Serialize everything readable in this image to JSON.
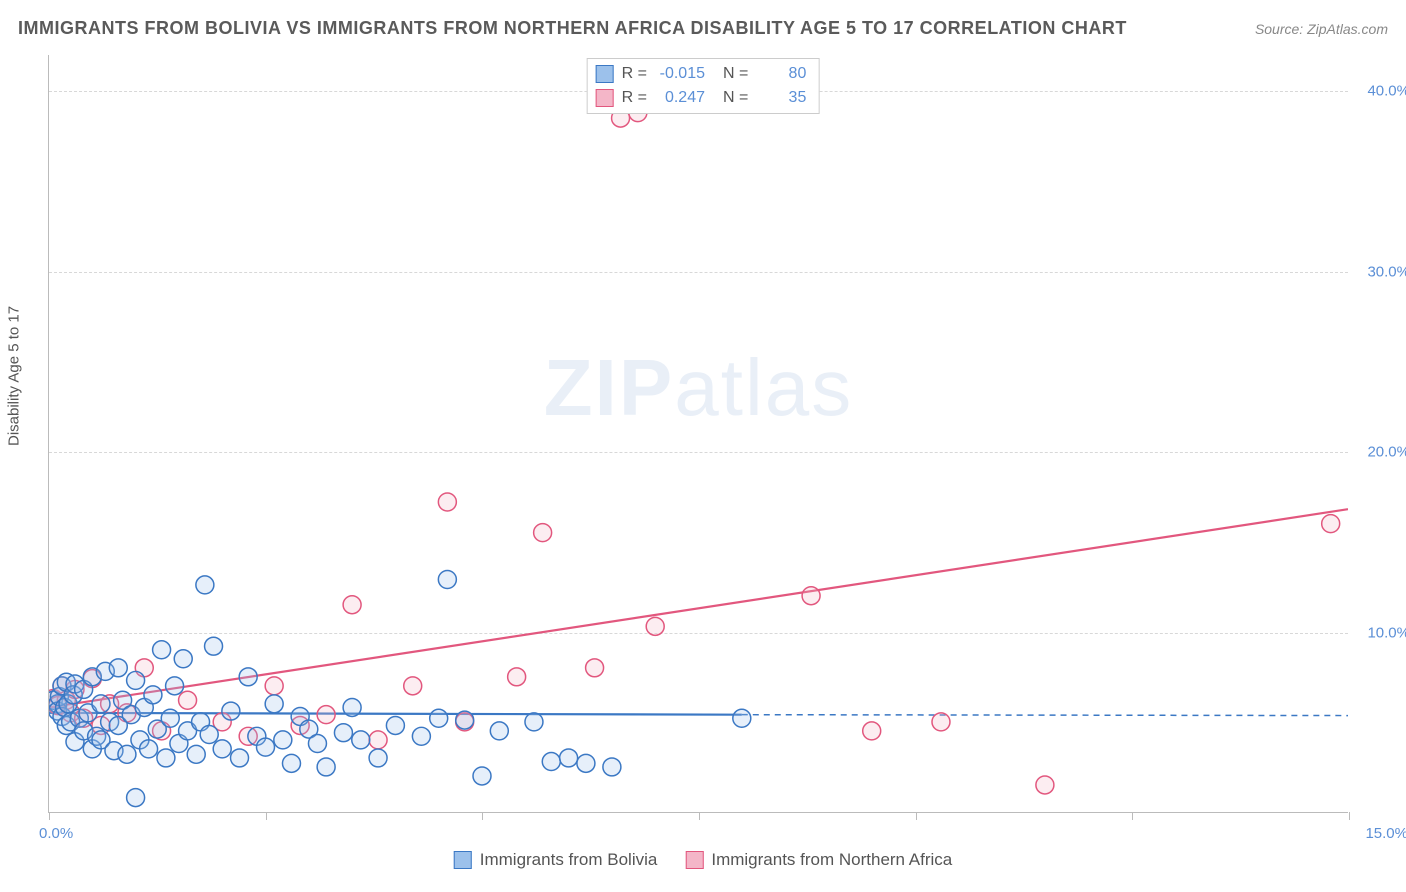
{
  "title": "IMMIGRANTS FROM BOLIVIA VS IMMIGRANTS FROM NORTHERN AFRICA DISABILITY AGE 5 TO 17 CORRELATION CHART",
  "source_label": "Source: ZipAtlas.com",
  "y_axis_label": "Disability Age 5 to 17",
  "watermark_a": "ZIP",
  "watermark_b": "atlas",
  "chart": {
    "type": "scatter",
    "xlim": [
      0,
      15
    ],
    "ylim": [
      0,
      42
    ],
    "x_tick_positions": [
      0,
      2.5,
      5.0,
      7.5,
      10.0,
      12.5,
      15.0
    ],
    "x_tick_labels": {
      "start": "0.0%",
      "end": "15.0%"
    },
    "y_ticks": [
      {
        "v": 10,
        "label": "10.0%"
      },
      {
        "v": 20,
        "label": "20.0%"
      },
      {
        "v": 30,
        "label": "30.0%"
      },
      {
        "v": 40,
        "label": "40.0%"
      }
    ],
    "background_color": "#ffffff",
    "grid_color": "#d8d8d8",
    "axis_color": "#bbbbbb",
    "tick_label_color": "#5b8fd6",
    "marker_radius": 9,
    "marker_stroke_width": 1.5,
    "marker_fill_opacity": 0.25,
    "line_width": 2.2
  },
  "series": [
    {
      "key": "bolivia",
      "label": "Immigrants from Bolivia",
      "color_stroke": "#3b78c4",
      "color_fill": "#9cc1eb",
      "R": "-0.015",
      "N": "80",
      "regression": {
        "x1": 0,
        "y1": 5.5,
        "x2": 8.0,
        "y2": 5.4,
        "dash_to_x": 15.0,
        "dash_to_y": 5.35
      },
      "points": [
        [
          0.05,
          6.2
        ],
        [
          0.1,
          6.0
        ],
        [
          0.1,
          5.6
        ],
        [
          0.12,
          6.4
        ],
        [
          0.15,
          5.3
        ],
        [
          0.15,
          7.0
        ],
        [
          0.18,
          5.8
        ],
        [
          0.2,
          4.8
        ],
        [
          0.2,
          7.2
        ],
        [
          0.22,
          6.0
        ],
        [
          0.25,
          5.0
        ],
        [
          0.28,
          6.5
        ],
        [
          0.3,
          3.9
        ],
        [
          0.3,
          7.1
        ],
        [
          0.35,
          5.2
        ],
        [
          0.4,
          4.5
        ],
        [
          0.4,
          6.8
        ],
        [
          0.45,
          5.5
        ],
        [
          0.5,
          3.5
        ],
        [
          0.5,
          7.5
        ],
        [
          0.55,
          4.2
        ],
        [
          0.6,
          6.0
        ],
        [
          0.6,
          4.0
        ],
        [
          0.65,
          7.8
        ],
        [
          0.7,
          5.0
        ],
        [
          0.75,
          3.4
        ],
        [
          0.8,
          4.8
        ],
        [
          0.8,
          8.0
        ],
        [
          0.85,
          6.2
        ],
        [
          0.9,
          3.2
        ],
        [
          0.95,
          5.4
        ],
        [
          1.0,
          0.8
        ],
        [
          1.0,
          7.3
        ],
        [
          1.05,
          4.0
        ],
        [
          1.1,
          5.8
        ],
        [
          1.15,
          3.5
        ],
        [
          1.2,
          6.5
        ],
        [
          1.25,
          4.6
        ],
        [
          1.3,
          9.0
        ],
        [
          1.35,
          3.0
        ],
        [
          1.4,
          5.2
        ],
        [
          1.45,
          7.0
        ],
        [
          1.5,
          3.8
        ],
        [
          1.55,
          8.5
        ],
        [
          1.6,
          4.5
        ],
        [
          1.7,
          3.2
        ],
        [
          1.75,
          5.0
        ],
        [
          1.8,
          12.6
        ],
        [
          1.85,
          4.3
        ],
        [
          1.9,
          9.2
        ],
        [
          2.0,
          3.5
        ],
        [
          2.1,
          5.6
        ],
        [
          2.2,
          3.0
        ],
        [
          2.3,
          7.5
        ],
        [
          2.4,
          4.2
        ],
        [
          2.5,
          3.6
        ],
        [
          2.6,
          6.0
        ],
        [
          2.7,
          4.0
        ],
        [
          2.8,
          2.7
        ],
        [
          2.9,
          5.3
        ],
        [
          3.0,
          4.6
        ],
        [
          3.1,
          3.8
        ],
        [
          3.2,
          2.5
        ],
        [
          3.4,
          4.4
        ],
        [
          3.5,
          5.8
        ],
        [
          3.6,
          4.0
        ],
        [
          3.8,
          3.0
        ],
        [
          4.0,
          4.8
        ],
        [
          4.3,
          4.2
        ],
        [
          4.5,
          5.2
        ],
        [
          4.6,
          12.9
        ],
        [
          4.8,
          5.1
        ],
        [
          5.0,
          2.0
        ],
        [
          5.2,
          4.5
        ],
        [
          5.6,
          5.0
        ],
        [
          5.8,
          2.8
        ],
        [
          6.0,
          3.0
        ],
        [
          6.2,
          2.7
        ],
        [
          6.5,
          2.5
        ],
        [
          8.0,
          5.2
        ]
      ]
    },
    {
      "key": "nafrica",
      "label": "Immigrants from Northern Africa",
      "color_stroke": "#e2577e",
      "color_fill": "#f4b6c8",
      "R": "0.247",
      "N": "35",
      "regression": {
        "x1": 0,
        "y1": 5.8,
        "x2": 15.0,
        "y2": 16.8
      },
      "points": [
        [
          0.05,
          6.3
        ],
        [
          0.1,
          5.9
        ],
        [
          0.15,
          7.0
        ],
        [
          0.2,
          6.2
        ],
        [
          0.25,
          5.5
        ],
        [
          0.3,
          6.8
        ],
        [
          0.4,
          5.2
        ],
        [
          0.5,
          7.4
        ],
        [
          0.6,
          4.8
        ],
        [
          0.7,
          6.0
        ],
        [
          0.9,
          5.5
        ],
        [
          1.1,
          8.0
        ],
        [
          1.3,
          4.5
        ],
        [
          1.6,
          6.2
        ],
        [
          2.0,
          5.0
        ],
        [
          2.3,
          4.2
        ],
        [
          2.6,
          7.0
        ],
        [
          2.9,
          4.8
        ],
        [
          3.2,
          5.4
        ],
        [
          3.5,
          11.5
        ],
        [
          3.8,
          4.0
        ],
        [
          4.2,
          7.0
        ],
        [
          4.6,
          17.2
        ],
        [
          4.8,
          5.0
        ],
        [
          5.4,
          7.5
        ],
        [
          5.7,
          15.5
        ],
        [
          6.3,
          8.0
        ],
        [
          6.6,
          38.5
        ],
        [
          6.8,
          38.8
        ],
        [
          7.0,
          10.3
        ],
        [
          8.8,
          12.0
        ],
        [
          9.5,
          4.5
        ],
        [
          10.3,
          5.0
        ],
        [
          11.5,
          1.5
        ],
        [
          14.8,
          16.0
        ]
      ]
    }
  ],
  "legend_top": {
    "r_label": "R =",
    "n_label": "N ="
  }
}
